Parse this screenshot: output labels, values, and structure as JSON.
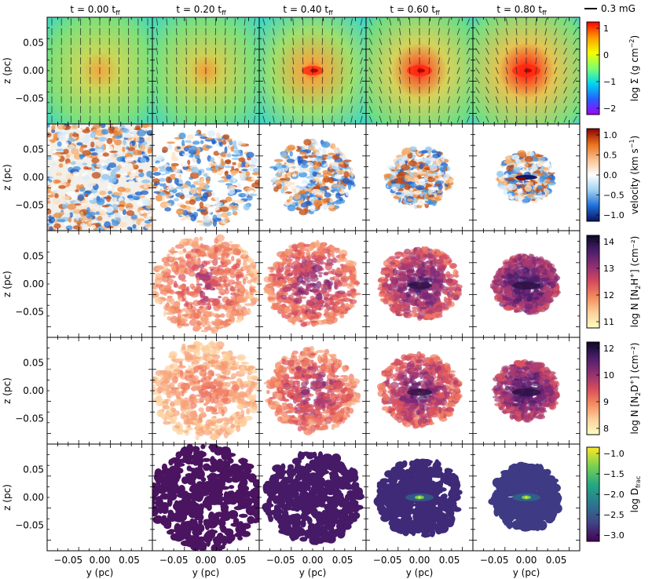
{
  "time_labels": [
    "t = 0.00 t",
    "t = 0.20 t",
    "t = 0.40 t",
    "t = 0.60 t",
    "t = 0.80 t"
  ],
  "time_subscript": "ff",
  "scale_bar_label": "0.3 mG",
  "ylabel": "z (pc)",
  "xlabel": "y (pc)",
  "ytick_labels": [
    "0.05",
    "0.00",
    "−0.05"
  ],
  "xtick_labels": [
    "−0.05",
    "0.00",
    "0.05"
  ],
  "colorbars": [
    {
      "label_main": "log Σ (g cm",
      "label_sup": "−2",
      "label_end": ")",
      "ticks": [
        "1",
        "0",
        "−1",
        "−2"
      ],
      "colors": [
        "#ff0000",
        "#ff9a00",
        "#f4ff00",
        "#7dff6e",
        "#00d6f0",
        "#2560ff",
        "#a000ff"
      ]
    },
    {
      "label_main": "velocity (km s",
      "label_sup": "−1",
      "label_end": ")",
      "ticks": [
        "1.0",
        "0.5",
        "0.0",
        "−0.5",
        "−1.0"
      ],
      "colors": [
        "#8b0000",
        "#e8701a",
        "#f9c08d",
        "#ffffff",
        "#9fd0f2",
        "#1e6fd9",
        "#08135f"
      ]
    },
    {
      "label_main": "log N [N",
      "label_sub": "2",
      "label_mid": "H",
      "label_sup": "+",
      "label_end": "] (cm⁻²)",
      "ticks": [
        "14",
        "13",
        "12",
        "11"
      ],
      "colors": [
        "#0c0926",
        "#4a1e6a",
        "#8e2f72",
        "#d54a5e",
        "#f48b5e",
        "#fcd09c",
        "#fcfdbf"
      ]
    },
    {
      "label_main": "log N [N",
      "label_sub": "2",
      "label_mid": "D",
      "label_sup": "+",
      "label_end": "] (cm⁻²)",
      "ticks": [
        "12",
        "10",
        "9",
        "8"
      ],
      "colors": [
        "#0c0926",
        "#4a1e6a",
        "#8e2f72",
        "#d54a5e",
        "#f48b5e",
        "#fcd09c",
        "#fcfdbf"
      ]
    },
    {
      "label_main": "log D",
      "label_sub": "frac",
      "ticks": [
        "−1.0",
        "−1.5",
        "−2.0",
        "−2.5",
        "−3.0"
      ],
      "colors": [
        "#fde725",
        "#7ad151",
        "#22a884",
        "#2a788e",
        "#414487",
        "#440154"
      ]
    }
  ]
}
